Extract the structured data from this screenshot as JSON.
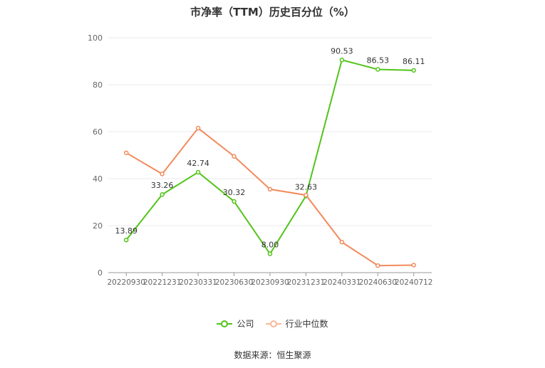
{
  "chart_data": {
    "type": "line",
    "title": "市净率（TTM）历史百分位（%）",
    "categories": [
      "20220930",
      "20221231",
      "20230331",
      "20230630",
      "20230930",
      "20231231",
      "20240331",
      "20240630",
      "20240712"
    ],
    "series": [
      {
        "name": "公司",
        "color": "#52c41a",
        "values": [
          13.89,
          33.26,
          42.74,
          30.32,
          8.0,
          32.63,
          90.53,
          86.53,
          86.11
        ],
        "labels": [
          "13.89",
          "33.26",
          "42.74",
          "30.32",
          "8.00",
          "32.63",
          "90.53",
          "86.53",
          "86.11"
        ]
      },
      {
        "name": "行业中位数",
        "color": "#f28b5c",
        "values": [
          51,
          42,
          61.5,
          49.5,
          35.5,
          33,
          13,
          3,
          3.2
        ]
      }
    ],
    "yticks": [
      "0",
      "20",
      "40",
      "60",
      "80",
      "100"
    ],
    "ylim": [
      0,
      100
    ],
    "grid": true,
    "legend_position": "bottom"
  },
  "source": "数据来源：恒生聚源"
}
